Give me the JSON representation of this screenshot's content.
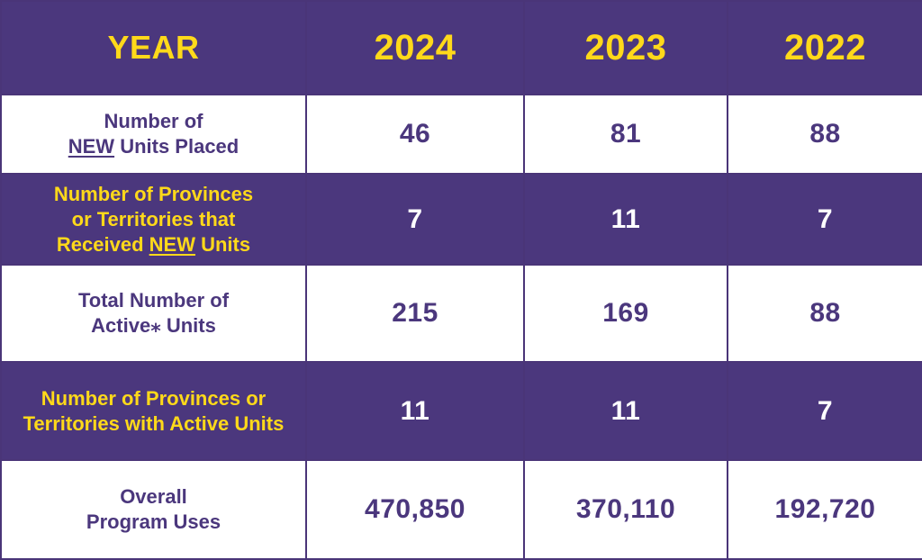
{
  "chart_data": {
    "type": "table",
    "columns": [
      "YEAR",
      "2024",
      "2023",
      "2022"
    ],
    "rows": [
      {
        "label_lines": [
          [
            "Number of"
          ],
          [
            "NEW",
            " Units Placed"
          ]
        ],
        "values": [
          "46",
          "81",
          "88"
        ]
      },
      {
        "label_lines": [
          [
            "Number of Provinces"
          ],
          [
            "or Territories that"
          ],
          [
            "Received ",
            "NEW",
            " Units"
          ]
        ],
        "values": [
          "7",
          "11",
          "7"
        ]
      },
      {
        "label_lines": [
          [
            "Total Number of"
          ],
          [
            "Active⁎ Units"
          ]
        ],
        "values": [
          "215",
          "169",
          "88"
        ]
      },
      {
        "label_lines": [
          [
            "Number of Provinces or"
          ],
          [
            "Territories with Active Units"
          ]
        ],
        "values": [
          "11",
          "11",
          "7"
        ]
      },
      {
        "label_lines": [
          [
            "Overall"
          ],
          [
            "Program Uses"
          ]
        ],
        "values": [
          "470,850",
          "370,110",
          "192,720"
        ]
      }
    ],
    "colors": {
      "purple": "#4b377d",
      "yellow": "#ffd91a",
      "white": "#ffffff"
    }
  }
}
